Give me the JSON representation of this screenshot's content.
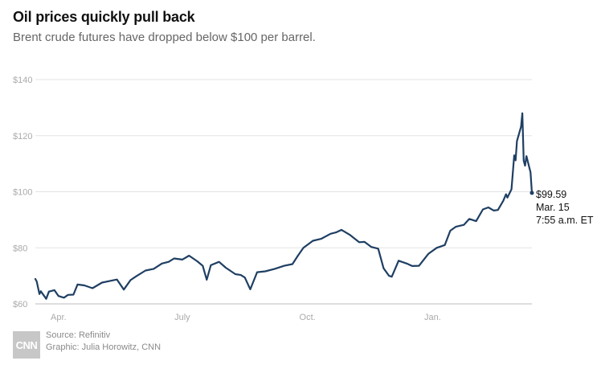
{
  "title": "Oil prices quickly pull back",
  "subtitle": "Brent crude futures have dropped below $100 per barrel.",
  "footer": {
    "source": "Source: Refinitiv",
    "graphic": "Graphic: Julia Horowitz, CNN",
    "logo_text": "CNN"
  },
  "colors": {
    "line": "#1f3f63",
    "grid": "#e3e3e3",
    "axis_text": "#aaaaaa"
  },
  "chart_data": {
    "type": "line",
    "title": "Oil prices quickly pull back",
    "subtitle": "Brent crude futures have dropped below $100 per barrel.",
    "xlabel": "",
    "ylabel": "",
    "ylim": [
      60,
      140
    ],
    "xlim": [
      "2021-03-15",
      "2022-03-15"
    ],
    "y_ticks": [
      60,
      80,
      100,
      120,
      140
    ],
    "y_tick_labels": [
      "$60",
      "$80",
      "$100",
      "$120",
      "$140"
    ],
    "x_tick_labels": [
      {
        "date": "2021-04-01",
        "label": "Apr."
      },
      {
        "date": "2021-07-01",
        "label": "July"
      },
      {
        "date": "2021-10-01",
        "label": "Oct."
      },
      {
        "date": "2022-01-01",
        "label": "Jan."
      }
    ],
    "grid": true,
    "series": [
      {
        "x": [
          "2021-03-15",
          "2021-03-16",
          "2021-03-18",
          "2021-03-19",
          "2021-03-23",
          "2021-03-25",
          "2021-03-29",
          "2021-04-01",
          "2021-04-05",
          "2021-04-08",
          "2021-04-12",
          "2021-04-15",
          "2021-04-20",
          "2021-04-26",
          "2021-05-03",
          "2021-05-10",
          "2021-05-14",
          "2021-05-19",
          "2021-05-24",
          "2021-05-28",
          "2021-06-04",
          "2021-06-10",
          "2021-06-16",
          "2021-06-21",
          "2021-06-25",
          "2021-07-01",
          "2021-07-06",
          "2021-07-12",
          "2021-07-16",
          "2021-07-19",
          "2021-07-22",
          "2021-07-28",
          "2021-08-02",
          "2021-08-09",
          "2021-08-13",
          "2021-08-16",
          "2021-08-20",
          "2021-08-25",
          "2021-08-31",
          "2021-09-07",
          "2021-09-14",
          "2021-09-20",
          "2021-09-24",
          "2021-09-28",
          "2021-10-05",
          "2021-10-11",
          "2021-10-18",
          "2021-10-22",
          "2021-10-26",
          "2021-11-01",
          "2021-11-08",
          "2021-11-12",
          "2021-11-17",
          "2021-11-22",
          "2021-11-26",
          "2021-11-30",
          "2021-12-02",
          "2021-12-07",
          "2021-12-13",
          "2021-12-17",
          "2021-12-22",
          "2021-12-29",
          "2022-01-04",
          "2022-01-10",
          "2022-01-14",
          "2022-01-18",
          "2022-01-24",
          "2022-01-28",
          "2022-02-02",
          "2022-02-07",
          "2022-02-11",
          "2022-02-15",
          "2022-02-18",
          "2022-02-22",
          "2022-02-24",
          "2022-02-25",
          "2022-02-28",
          "2022-03-02",
          "2022-03-03",
          "2022-03-04",
          "2022-03-07",
          "2022-03-08",
          "2022-03-09",
          "2022-03-10",
          "2022-03-11",
          "2022-03-14",
          "2022-03-15"
        ],
        "values": [
          68.9,
          68.0,
          63.5,
          64.5,
          61.8,
          64.4,
          64.9,
          62.8,
          62.2,
          63.2,
          63.3,
          66.9,
          66.6,
          65.6,
          67.6,
          68.3,
          68.7,
          65.1,
          68.5,
          69.8,
          71.9,
          72.5,
          74.4,
          75.0,
          76.2,
          75.8,
          77.2,
          75.2,
          73.6,
          68.6,
          73.8,
          75.0,
          72.9,
          70.6,
          70.3,
          69.4,
          65.2,
          71.3,
          71.6,
          72.5,
          73.6,
          74.2,
          77.2,
          80.0,
          82.5,
          83.2,
          85.0,
          85.5,
          86.4,
          84.7,
          82.0,
          82.1,
          80.3,
          79.7,
          72.7,
          70.0,
          69.7,
          75.4,
          74.4,
          73.5,
          73.6,
          77.9,
          80.0,
          81.0,
          86.1,
          87.5,
          88.2,
          90.3,
          89.5,
          93.7,
          94.4,
          93.3,
          93.5,
          96.8,
          99.1,
          97.9,
          100.9,
          113.0,
          111.2,
          118.1,
          123.2,
          128.0,
          111.1,
          109.3,
          112.7,
          106.9,
          99.59
        ]
      }
    ],
    "annotation": {
      "value": "$99.59",
      "date": "Mar. 15",
      "time": "7:55 a.m. ET"
    }
  }
}
